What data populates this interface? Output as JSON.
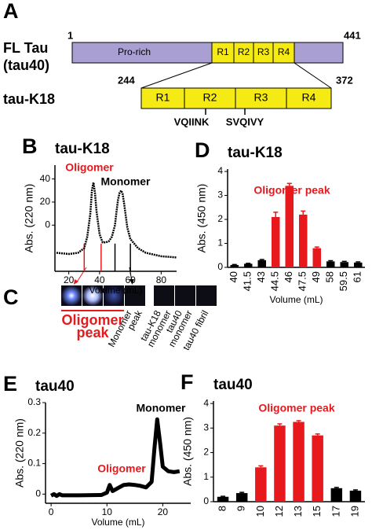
{
  "panel_a": {
    "label": "A",
    "fl_name": "FL Tau",
    "fl_sub": "(tau40)",
    "fl_start": "1",
    "fl_end": "441",
    "prorich": "Pro-rich",
    "repeats": [
      "R1",
      "R2",
      "R3",
      "R4"
    ],
    "k18_name": "tau-K18",
    "k18_start": "244",
    "k18_end": "372",
    "k18_repeats": [
      "R1",
      "R2",
      "R3",
      "R4"
    ],
    "motifs": [
      "VQIINK",
      "SVQIVY"
    ]
  },
  "panel_c": {
    "label": "C",
    "group_label": [
      "Oligomer",
      "peak"
    ],
    "lanes": [
      [
        "Monomer",
        "peak"
      ],
      [
        "tau-K18",
        "monomer"
      ],
      [
        "tau40",
        "monomer"
      ],
      [
        "tau40 fibril"
      ]
    ]
  },
  "chart_data": [
    {
      "panel": "B",
      "type": "line",
      "title": "tau-K18",
      "ylabel": "Abs. (220 nm)",
      "xlabel": "Volume (mL)",
      "color": "#000000",
      "x": [
        12,
        20,
        26,
        30,
        32,
        34,
        35,
        36,
        37,
        38,
        40,
        42,
        44,
        46,
        48,
        50,
        51,
        52,
        53,
        54,
        55,
        56,
        58,
        60,
        65,
        70,
        80,
        90
      ],
      "values": [
        -24,
        -25,
        -24,
        -20,
        -10,
        10,
        30,
        37,
        28,
        12,
        -8,
        -15,
        -15,
        -14,
        -10,
        0,
        12,
        22,
        28,
        30,
        27,
        18,
        -2,
        -12,
        -20,
        -24,
        -27,
        -28
      ],
      "xlim": [
        11,
        90
      ],
      "xticks": [
        20,
        40,
        60,
        80
      ],
      "ylim": [
        -40,
        52
      ],
      "yticks": [
        0,
        20,
        40
      ],
      "fraction_lines": [
        {
          "x": 30,
          "color": "#e8191c"
        },
        {
          "x": 41,
          "color": "#e8191c"
        },
        {
          "x": 50,
          "color": "#000000"
        },
        {
          "x": 60,
          "color": "#000000"
        }
      ],
      "annotations": [
        {
          "text": "Oligomer",
          "color": "#e8191c"
        },
        {
          "text": "Monomer",
          "color": "#000000"
        }
      ]
    },
    {
      "panel": "D",
      "type": "bar",
      "title": "tau-K18",
      "ylabel": "Abs. (450 nm)",
      "xlabel": "Volume (mL)",
      "categories": [
        "40",
        "41.5",
        "43",
        "44.5",
        "46",
        "47.5",
        "49",
        "58",
        "59.5",
        "61"
      ],
      "values": [
        0.1,
        0.15,
        0.3,
        2.1,
        3.4,
        2.2,
        0.8,
        0.25,
        0.22,
        0.2
      ],
      "errors": [
        0.02,
        0.02,
        0.03,
        0.2,
        0.1,
        0.15,
        0.05,
        0.03,
        0.03,
        0.03
      ],
      "colors": [
        "#000000",
        "#000000",
        "#000000",
        "#e8191c",
        "#e8191c",
        "#e8191c",
        "#e8191c",
        "#000000",
        "#000000",
        "#000000"
      ],
      "ylim": [
        0,
        4.1
      ],
      "yticks": [
        0,
        1,
        2,
        3,
        4
      ],
      "annotations": [
        {
          "text": "Oligomer peak",
          "color": "#e8191c"
        }
      ]
    },
    {
      "panel": "E",
      "type": "line",
      "title": "tau40",
      "ylabel": "Abs. (220 nm)",
      "xlabel": "Volume (mL)",
      "color": "#000000",
      "x": [
        0,
        0.5,
        1,
        1.5,
        2,
        5,
        9,
        10,
        10.5,
        11,
        12,
        13,
        14,
        15,
        16,
        17,
        18,
        18.5,
        19,
        19.5,
        20,
        21,
        22,
        23
      ],
      "values": [
        -0.005,
        0,
        -0.006,
        0,
        -0.004,
        -0.004,
        -0.003,
        0.005,
        0.03,
        0.01,
        0.02,
        0.03,
        0.032,
        0.03,
        0.027,
        0.022,
        0.04,
        0.15,
        0.245,
        0.17,
        0.09,
        0.075,
        0.072,
        0.075
      ],
      "xlim": [
        -1,
        25
      ],
      "xticks": [
        0,
        10,
        20
      ],
      "ylim": [
        -0.03,
        0.3
      ],
      "yticks": [
        0,
        0.1,
        0.2,
        0.3
      ],
      "annotations": [
        {
          "text": "Monomer",
          "color": "#000000"
        },
        {
          "text": "Oligomer",
          "color": "#e8191c"
        }
      ]
    },
    {
      "panel": "F",
      "type": "bar",
      "title": "tau40",
      "ylabel": "Abs. (450 nm)",
      "xlabel": "Volume (mL)",
      "categories": [
        "8",
        "9",
        "10",
        "12",
        "13",
        "15",
        "17",
        "19"
      ],
      "values": [
        0.2,
        0.35,
        1.4,
        3.1,
        3.25,
        2.7,
        0.55,
        0.45
      ],
      "errors": [
        0.02,
        0.03,
        0.06,
        0.07,
        0.05,
        0.06,
        0.03,
        0.03
      ],
      "colors": [
        "#000000",
        "#000000",
        "#e8191c",
        "#e8191c",
        "#e8191c",
        "#e8191c",
        "#000000",
        "#000000"
      ],
      "ylim": [
        0,
        4.1
      ],
      "yticks": [
        0,
        1,
        2,
        3,
        4
      ],
      "annotations": [
        {
          "text": "Oligomer peak",
          "color": "#e8191c"
        }
      ]
    }
  ]
}
